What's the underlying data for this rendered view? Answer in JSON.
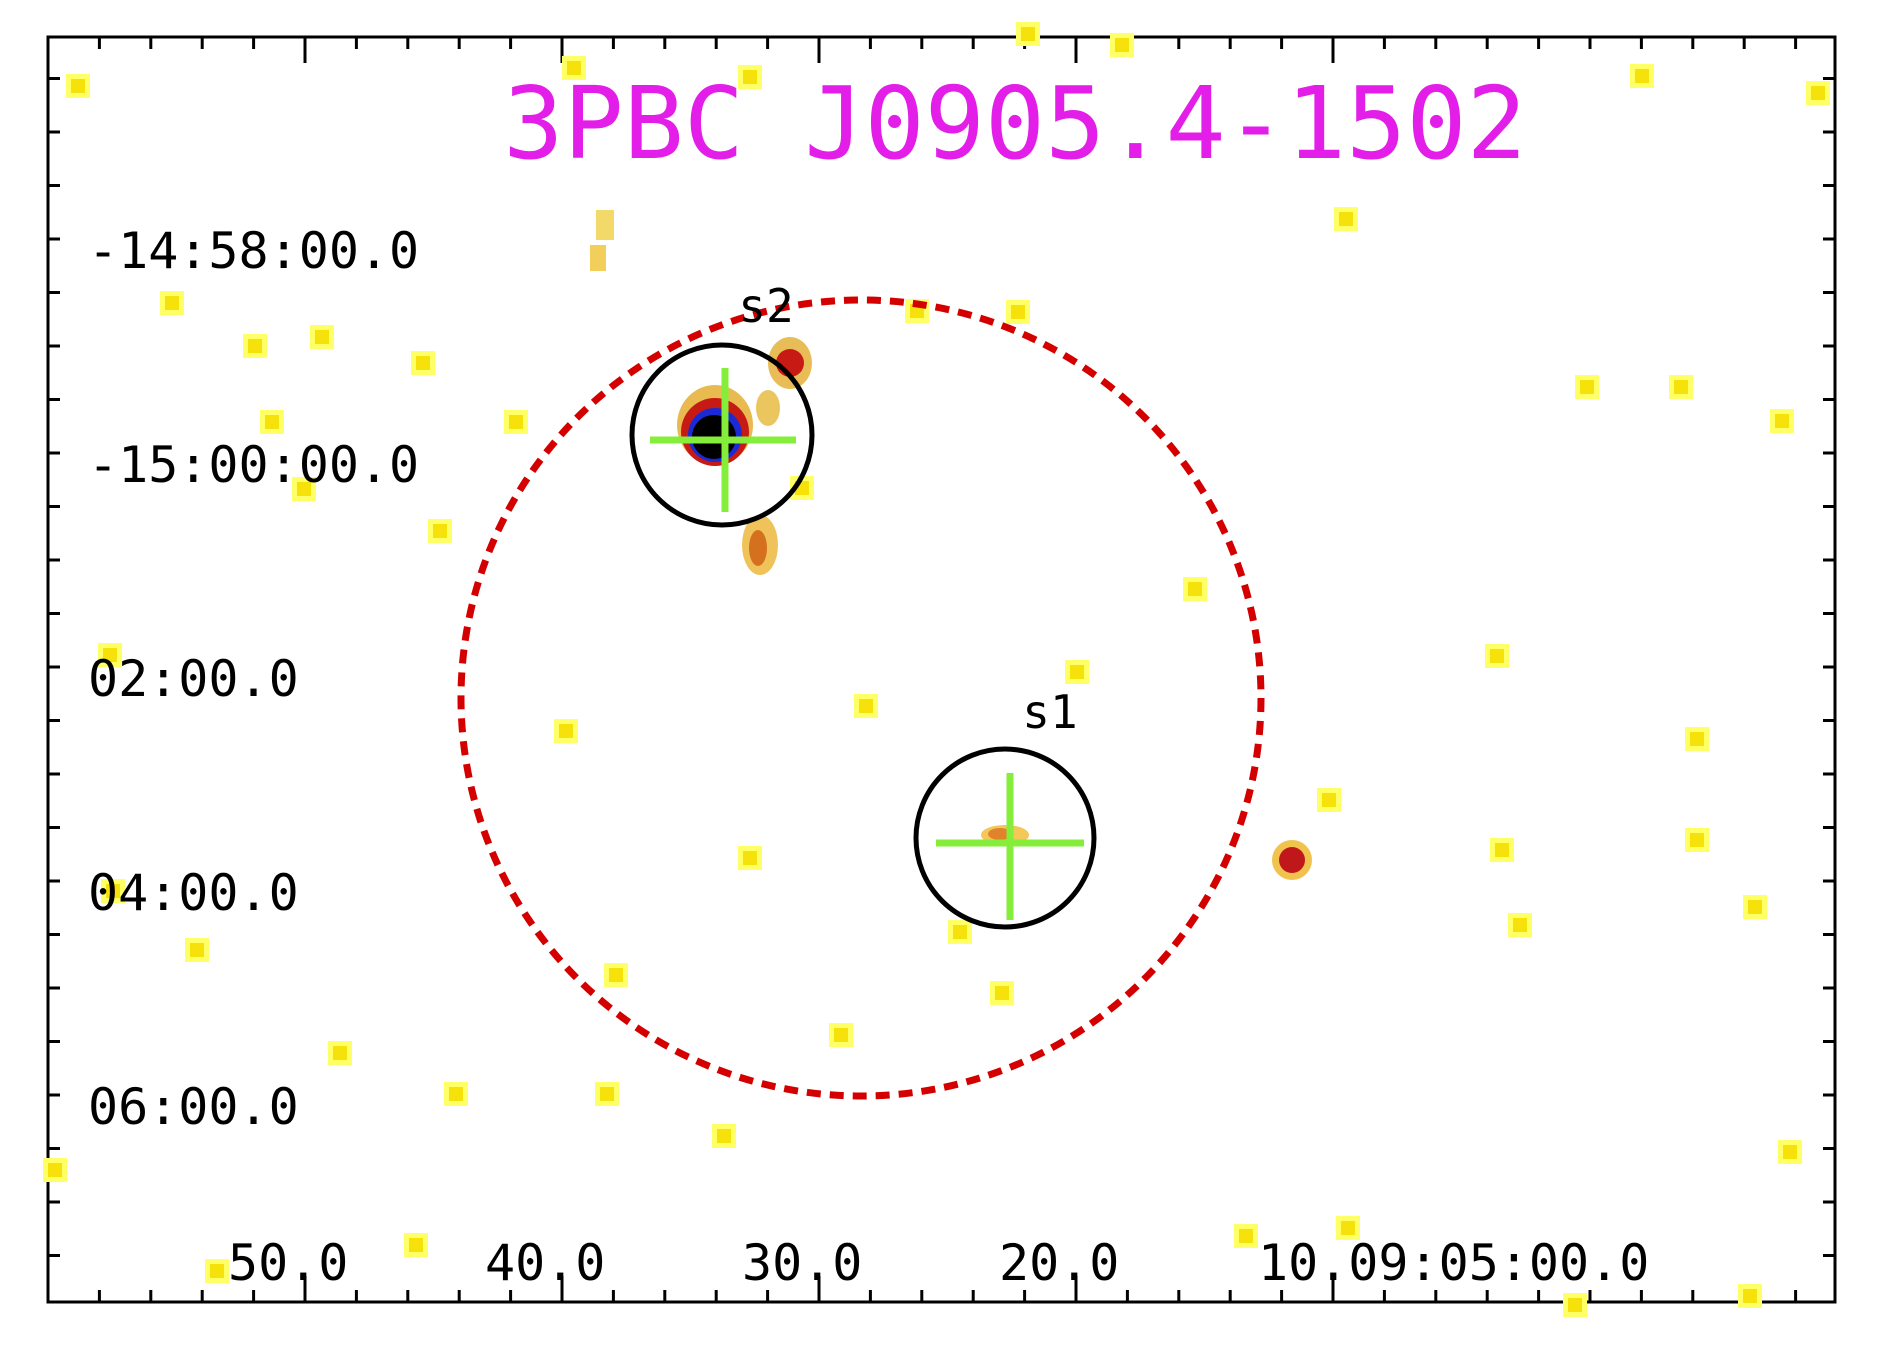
{
  "title": "3PBC J0905.4-1502",
  "colors": {
    "title": "#e21ee8",
    "error_ellipse": "#d40000",
    "source_circle": "#000000",
    "source_cross": "#84ee3a",
    "pixel_faint": "#ffff33",
    "pixel_medium": "#f5a623",
    "pixel_bright": "#cc1111",
    "pixel_peak": "#000000",
    "pixel_halo": "#1a2bd6"
  },
  "axes": {
    "ra_labels": [
      "50.0",
      "40.0",
      "30.0",
      "20.0",
      "10.09:05:00.0"
    ],
    "dec_labels": [
      "-14:58:00.0",
      "-15:00:00.0",
      "02:00.0",
      "04:00.0",
      "06:00.0"
    ]
  },
  "sources": [
    {
      "id": "s1",
      "label": "s1"
    },
    {
      "id": "s2",
      "label": "s2"
    }
  ]
}
